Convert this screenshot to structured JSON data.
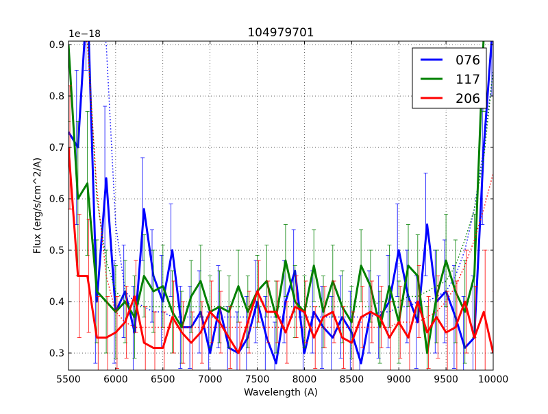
{
  "chart_data": {
    "type": "line",
    "title": "104979701",
    "xlabel": "Wavelength (A)",
    "ylabel": "Flux (erg/s/cm^2/A)",
    "offset_text": "1e−18",
    "xlim": [
      5500,
      10000
    ],
    "ylim": [
      0.2667,
      0.9067
    ],
    "xticks": [
      5500,
      6000,
      6500,
      7000,
      7500,
      8000,
      8500,
      9000,
      9500,
      10000
    ],
    "yticks": [
      0.3,
      0.4,
      0.5,
      0.6,
      0.7,
      0.8,
      0.9
    ],
    "ytick_labels": [
      "0.3",
      "0.4",
      "0.5",
      "0.6",
      "0.7",
      "0.8",
      "0.9"
    ],
    "grid": true,
    "legend_position": "top-right",
    "x": [
      5500,
      5600,
      5700,
      5800,
      5900,
      6000,
      6100,
      6200,
      6300,
      6400,
      6500,
      6600,
      6700,
      6800,
      6900,
      7000,
      7100,
      7200,
      7300,
      7400,
      7500,
      7600,
      7700,
      7800,
      7900,
      8000,
      8100,
      8200,
      8300,
      8400,
      8500,
      8600,
      8700,
      8800,
      8900,
      9000,
      9100,
      9200,
      9300,
      9400,
      9500,
      9600,
      9700,
      9800,
      9900,
      10000
    ],
    "series": [
      {
        "name": "076",
        "color": "#0000ff",
        "values": [
          0.73,
          0.7,
          1.0,
          0.4,
          0.64,
          0.38,
          0.42,
          0.34,
          0.58,
          0.45,
          0.4,
          0.5,
          0.35,
          0.35,
          0.38,
          0.3,
          0.39,
          0.31,
          0.3,
          0.33,
          0.4,
          0.33,
          0.28,
          0.4,
          0.46,
          0.3,
          0.38,
          0.35,
          0.33,
          0.37,
          0.34,
          0.28,
          0.38,
          0.37,
          0.4,
          0.5,
          0.41,
          0.36,
          0.55,
          0.4,
          0.42,
          0.37,
          0.31,
          0.33,
          0.7,
          0.95
        ],
        "err": [
          0.15,
          0.15,
          0.15,
          0.12,
          0.14,
          0.1,
          0.09,
          0.09,
          0.1,
          0.09,
          0.09,
          0.09,
          0.08,
          0.08,
          0.08,
          0.08,
          0.08,
          0.08,
          0.08,
          0.08,
          0.08,
          0.08,
          0.08,
          0.08,
          0.08,
          0.08,
          0.08,
          0.08,
          0.08,
          0.08,
          0.08,
          0.08,
          0.08,
          0.08,
          0.09,
          0.09,
          0.09,
          0.09,
          0.1,
          0.1,
          0.1,
          0.1,
          0.1,
          0.12,
          0.15,
          0.15
        ],
        "continuum": [
          1.3,
          1.2,
          1.1,
          1.0,
          0.9,
          0.55,
          0.42,
          0.4,
          0.39,
          0.38,
          0.38,
          0.37,
          0.37,
          0.37,
          0.37,
          0.37,
          0.37,
          0.37,
          0.37,
          0.37,
          0.37,
          0.37,
          0.37,
          0.37,
          0.37,
          0.37,
          0.37,
          0.37,
          0.37,
          0.37,
          0.37,
          0.37,
          0.37,
          0.38,
          0.38,
          0.39,
          0.39,
          0.4,
          0.4,
          0.41,
          0.42,
          0.45,
          0.5,
          0.58,
          0.7,
          0.85
        ]
      },
      {
        "name": "117",
        "color": "#008000",
        "values": [
          0.9,
          0.6,
          0.63,
          0.42,
          0.4,
          0.38,
          0.4,
          0.37,
          0.45,
          0.42,
          0.43,
          0.38,
          0.35,
          0.41,
          0.44,
          0.38,
          0.39,
          0.38,
          0.43,
          0.38,
          0.42,
          0.44,
          0.37,
          0.48,
          0.4,
          0.38,
          0.47,
          0.38,
          0.44,
          0.39,
          0.36,
          0.47,
          0.43,
          0.35,
          0.43,
          0.36,
          0.47,
          0.45,
          0.3,
          0.41,
          0.48,
          0.42,
          0.38,
          0.45,
          0.92,
          0.95
        ],
        "err": [
          0.15,
          0.15,
          0.14,
          0.1,
          0.1,
          0.09,
          0.08,
          0.08,
          0.08,
          0.08,
          0.08,
          0.08,
          0.07,
          0.07,
          0.07,
          0.07,
          0.07,
          0.07,
          0.07,
          0.07,
          0.07,
          0.07,
          0.07,
          0.07,
          0.07,
          0.07,
          0.07,
          0.07,
          0.07,
          0.07,
          0.07,
          0.07,
          0.07,
          0.07,
          0.08,
          0.08,
          0.08,
          0.08,
          0.09,
          0.09,
          0.09,
          0.1,
          0.1,
          0.12,
          0.15,
          0.15
        ],
        "continuum": [
          1.2,
          1.05,
          0.92,
          0.6,
          0.48,
          0.42,
          0.4,
          0.39,
          0.39,
          0.39,
          0.39,
          0.39,
          0.39,
          0.39,
          0.39,
          0.39,
          0.39,
          0.39,
          0.39,
          0.39,
          0.39,
          0.39,
          0.39,
          0.39,
          0.39,
          0.39,
          0.39,
          0.39,
          0.39,
          0.39,
          0.39,
          0.39,
          0.39,
          0.4,
          0.4,
          0.4,
          0.41,
          0.41,
          0.42,
          0.43,
          0.44,
          0.47,
          0.52,
          0.58,
          0.68,
          0.85
        ]
      },
      {
        "name": "206",
        "color": "#ff0000",
        "values": [
          0.7,
          0.45,
          0.45,
          0.33,
          0.33,
          0.34,
          0.36,
          0.41,
          0.32,
          0.31,
          0.31,
          0.37,
          0.34,
          0.32,
          0.34,
          0.38,
          0.36,
          0.33,
          0.3,
          0.36,
          0.42,
          0.38,
          0.38,
          0.34,
          0.39,
          0.38,
          0.33,
          0.37,
          0.38,
          0.33,
          0.32,
          0.37,
          0.38,
          0.37,
          0.33,
          0.36,
          0.33,
          0.4,
          0.34,
          0.37,
          0.34,
          0.35,
          0.4,
          0.33,
          0.38,
          0.3
        ],
        "err": [
          0.12,
          0.12,
          0.11,
          0.08,
          0.08,
          0.07,
          0.07,
          0.07,
          0.07,
          0.07,
          0.07,
          0.07,
          0.06,
          0.06,
          0.06,
          0.06,
          0.06,
          0.06,
          0.06,
          0.06,
          0.06,
          0.06,
          0.06,
          0.06,
          0.06,
          0.06,
          0.06,
          0.06,
          0.06,
          0.06,
          0.06,
          0.06,
          0.06,
          0.06,
          0.07,
          0.07,
          0.07,
          0.07,
          0.07,
          0.08,
          0.08,
          0.09,
          0.1,
          0.1,
          0.12,
          0.12
        ],
        "continuum": [
          1.15,
          1.0,
          0.9,
          0.62,
          0.45,
          0.38,
          0.36,
          0.35,
          0.35,
          0.35,
          0.35,
          0.35,
          0.35,
          0.35,
          0.35,
          0.35,
          0.35,
          0.35,
          0.35,
          0.35,
          0.35,
          0.35,
          0.35,
          0.35,
          0.35,
          0.35,
          0.35,
          0.35,
          0.35,
          0.35,
          0.35,
          0.35,
          0.35,
          0.35,
          0.35,
          0.36,
          0.36,
          0.36,
          0.37,
          0.38,
          0.4,
          0.43,
          0.47,
          0.52,
          0.58,
          0.65
        ]
      }
    ]
  }
}
